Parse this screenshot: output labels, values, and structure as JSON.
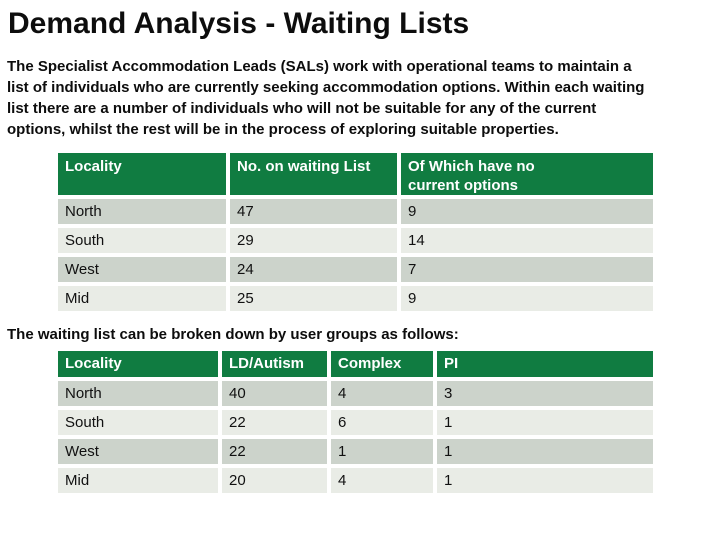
{
  "slide": {
    "title": "Demand Analysis - Waiting Lists",
    "intro": "The Specialist Accommodation Leads (SALs) work with operational teams to maintain a\nlist of individuals who are currently seeking accommodation options. Within each waiting\nlist there are a number of individuals who will not be suitable for any of the current\noptions, whilst the rest will be in the process of exploring suitable properties.",
    "breakdown_note": "The waiting list can be broken down by user groups as follows:"
  },
  "colors": {
    "header_green": "#107c41",
    "row_dark": "#ccd3cb",
    "row_light": "#e9ece6",
    "header_text": "#ffffff",
    "body_text": "#111111"
  },
  "waiting_table": {
    "headers": [
      "Locality",
      "No. on waiting List",
      "Of Which have no\ncurrent options"
    ],
    "rows": [
      [
        "North",
        "47",
        "9"
      ],
      [
        "South",
        "29",
        "14"
      ],
      [
        "West",
        "24",
        "7"
      ],
      [
        "Mid",
        "25",
        "9"
      ]
    ]
  },
  "user_groups_table": {
    "headers": [
      "Locality",
      "LD/Autism",
      "Complex",
      "PI"
    ],
    "rows": [
      [
        "North",
        "40",
        "4",
        "3"
      ],
      [
        "South",
        "22",
        "6",
        "1"
      ],
      [
        "West",
        "22",
        "1",
        "1"
      ],
      [
        "Mid",
        "20",
        "4",
        "1"
      ]
    ]
  }
}
